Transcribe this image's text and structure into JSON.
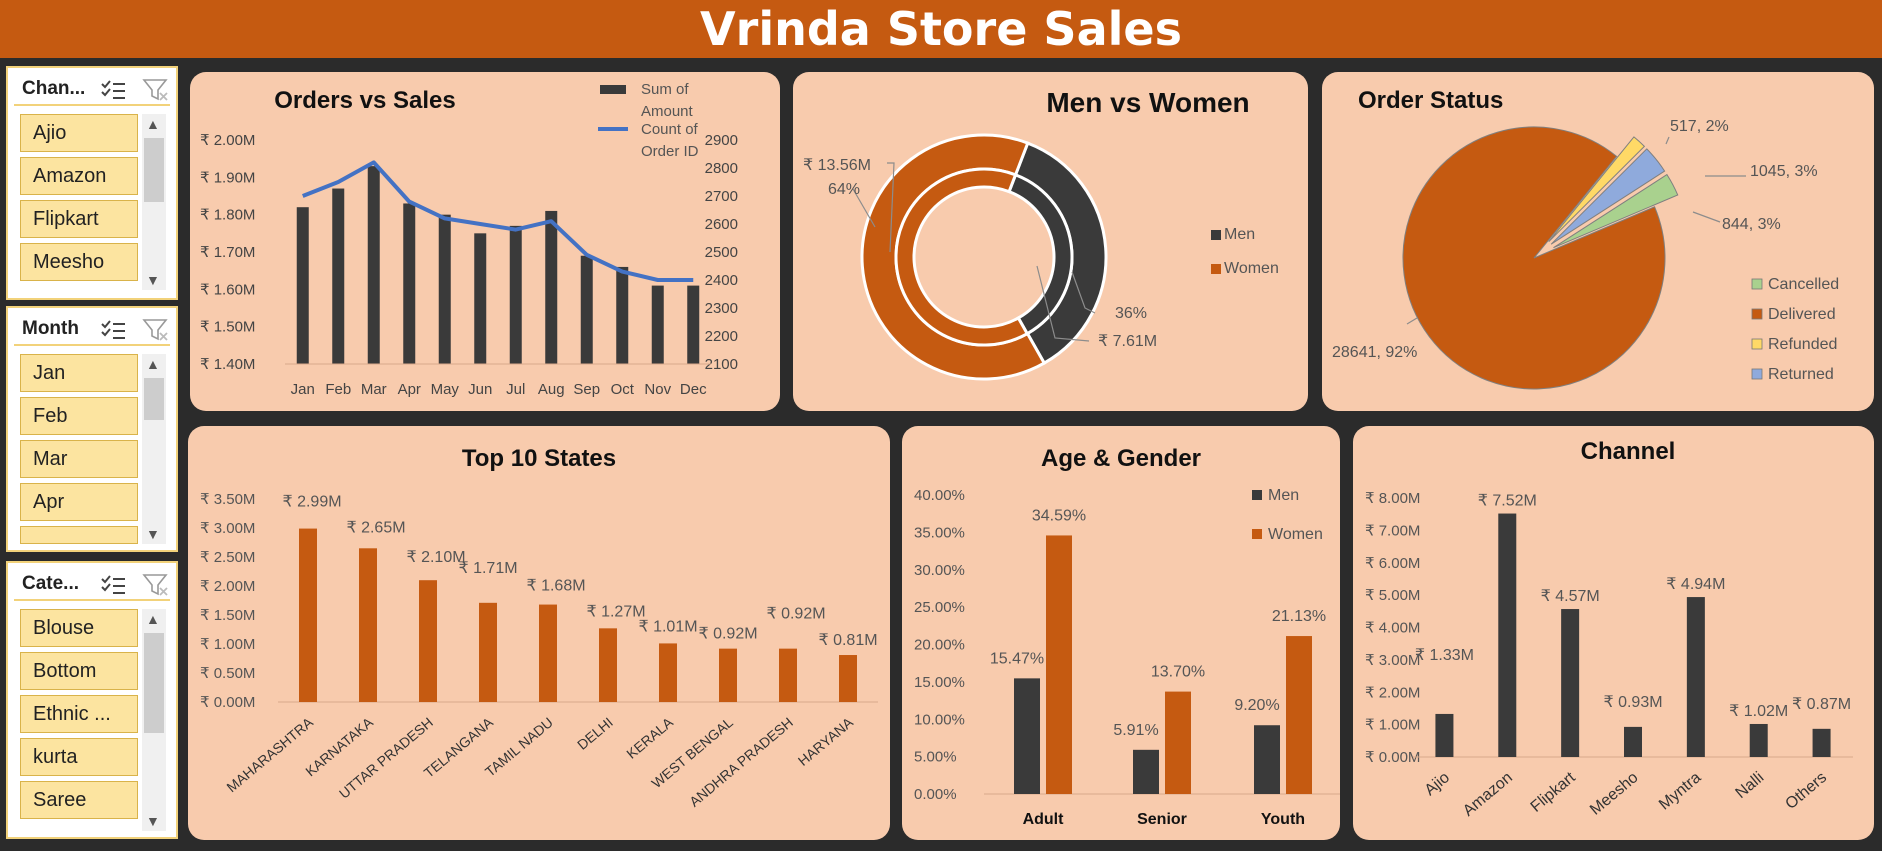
{
  "dashboard": {
    "title": "Vrinda Store Sales"
  },
  "slicers": [
    {
      "title": "Chan...",
      "items": [
        "Ajio",
        "Amazon",
        "Flipkart",
        "Meesho"
      ]
    },
    {
      "title": "Month",
      "items": [
        "Jan",
        "Feb",
        "Mar",
        "Apr"
      ]
    },
    {
      "title": "Cate...",
      "items": [
        "Blouse",
        "Bottom",
        "Ethnic ...",
        "kurta",
        "Saree"
      ]
    }
  ],
  "colors": {
    "banner": "#c55a11",
    "panel": "#f8cbad",
    "orange": "#c55a11",
    "dark": "#3a3a3a",
    "line": "#4472c4",
    "slicer_item": "#fce4a0"
  },
  "chart_data": [
    {
      "id": "orders_vs_sales",
      "type": "bar",
      "title": "Orders vs Sales",
      "categories": [
        "Jan",
        "Feb",
        "Mar",
        "Apr",
        "May",
        "Jun",
        "Jul",
        "Aug",
        "Sep",
        "Oct",
        "Nov",
        "Dec"
      ],
      "series": [
        {
          "name": "Sum of Amount",
          "type": "bar",
          "axis": "left",
          "values": [
            1.82,
            1.87,
            1.93,
            1.83,
            1.8,
            1.75,
            1.77,
            1.81,
            1.69,
            1.66,
            1.61,
            1.61
          ]
        },
        {
          "name": "Count of Order ID",
          "type": "line",
          "axis": "right",
          "values": [
            2700,
            2750,
            2820,
            2680,
            2620,
            2600,
            2580,
            2610,
            2490,
            2430,
            2400,
            2400
          ]
        }
      ],
      "y_left_ticks": [
        "₹ 2.00M",
        "₹ 1.90M",
        "₹ 1.80M",
        "₹ 1.70M",
        "₹ 1.60M",
        "₹ 1.50M",
        "₹ 1.40M"
      ],
      "y_left_range": [
        1.4,
        2.0
      ],
      "y_right_ticks": [
        "2900",
        "2800",
        "2700",
        "2600",
        "2500",
        "2400",
        "2300",
        "2200",
        "2100"
      ],
      "y_right_range": [
        2100,
        2900
      ],
      "legend": [
        "Sum of Amount",
        "Count of Order ID"
      ],
      "legend_lines": {
        "amount": [
          "Sum of",
          "Amount"
        ],
        "count": [
          "Count of",
          "Order ID"
        ]
      }
    },
    {
      "id": "men_vs_women",
      "type": "doughnut",
      "title": "Men vs Women",
      "categories": [
        "Men",
        "Women"
      ],
      "rings": [
        {
          "name": "Percent",
          "values": [
            36,
            64
          ]
        },
        {
          "name": "Amount",
          "values": [
            7.61,
            13.56
          ]
        }
      ],
      "labels": {
        "women_amount": "₹ 13.56M",
        "women_pct": "64%",
        "men_pct": "36%",
        "men_amount": "₹ 7.61M"
      },
      "legend": [
        "Men",
        "Women"
      ]
    },
    {
      "id": "order_status",
      "type": "pie",
      "title": "Order Status",
      "categories": [
        "Cancelled",
        "Delivered",
        "Refunded",
        "Returned"
      ],
      "values": [
        844,
        28641,
        517,
        1045
      ],
      "labels": {
        "refunded": "517, 2%",
        "returned": "1045, 3%",
        "cancelled": "844, 3%",
        "delivered": "28641, 92%"
      },
      "legend": [
        "Cancelled",
        "Delivered",
        "Refunded",
        "Returned"
      ],
      "slice_colors": {
        "Cancelled": "#a9d18e",
        "Delivered": "#c55a11",
        "Refunded": "#ffd966",
        "Returned": "#8faadc"
      }
    },
    {
      "id": "top_states",
      "type": "bar",
      "title": "Top 10 States",
      "categories": [
        "MAHARASHTRA",
        "KARNATAKA",
        "UTTAR PRADESH",
        "TELANGANA",
        "TAMIL NADU",
        "DELHI",
        "KERALA",
        "WEST BENGAL",
        "ANDHRA PRADESH",
        "HARYANA"
      ],
      "values": [
        2.99,
        2.65,
        2.1,
        1.71,
        1.68,
        1.27,
        1.01,
        0.92,
        0.92,
        0.81
      ],
      "data_labels": [
        "₹ 2.99M",
        "₹ 2.65M",
        "₹ 2.10M",
        "₹ 1.71M",
        "₹ 1.68M",
        "₹ 1.27M",
        "₹ 1.01M",
        "₹ 0.92M",
        "₹ 0.92M",
        "₹ 0.81M"
      ],
      "y_ticks": [
        "₹ 3.50M",
        "₹ 3.00M",
        "₹ 2.50M",
        "₹ 2.00M",
        "₹ 1.50M",
        "₹ 1.00M",
        "₹ 0.50M",
        "₹ 0.00M"
      ],
      "ylim": [
        0,
        3.5
      ]
    },
    {
      "id": "age_gender",
      "type": "bar",
      "title": "Age & Gender",
      "categories": [
        "Adult",
        "Senior",
        "Youth"
      ],
      "series": [
        {
          "name": "Men",
          "values": [
            15.47,
            5.91,
            9.2
          ],
          "labels": [
            "15.47%",
            "5.91%",
            "9.20%"
          ]
        },
        {
          "name": "Women",
          "values": [
            34.59,
            13.7,
            21.13
          ],
          "labels": [
            "34.59%",
            "13.70%",
            "21.13%"
          ]
        }
      ],
      "y_ticks": [
        "40.00%",
        "35.00%",
        "30.00%",
        "25.00%",
        "20.00%",
        "15.00%",
        "10.00%",
        "5.00%",
        "0.00%"
      ],
      "ylim": [
        0,
        40
      ],
      "legend": [
        "Men",
        "Women"
      ]
    },
    {
      "id": "channel",
      "type": "bar",
      "title": "Channel",
      "categories": [
        "Ajio",
        "Amazon",
        "Flipkart",
        "Meesho",
        "Myntra",
        "Nalli",
        "Others"
      ],
      "values": [
        1.33,
        7.52,
        4.57,
        0.93,
        4.94,
        1.02,
        0.87
      ],
      "data_labels": [
        "₹ 1.33M",
        "₹ 7.52M",
        "₹ 4.57M",
        "₹ 0.93M",
        "₹ 4.94M",
        "₹ 1.02M",
        "₹ 0.87M"
      ],
      "y_ticks": [
        "₹ 8.00M",
        "₹ 7.00M",
        "₹ 6.00M",
        "₹ 5.00M",
        "₹ 4.00M",
        "₹ 3.00M",
        "₹ 2.00M",
        "₹ 1.00M",
        "₹ 0.00M"
      ],
      "ylim": [
        0,
        8
      ]
    }
  ]
}
